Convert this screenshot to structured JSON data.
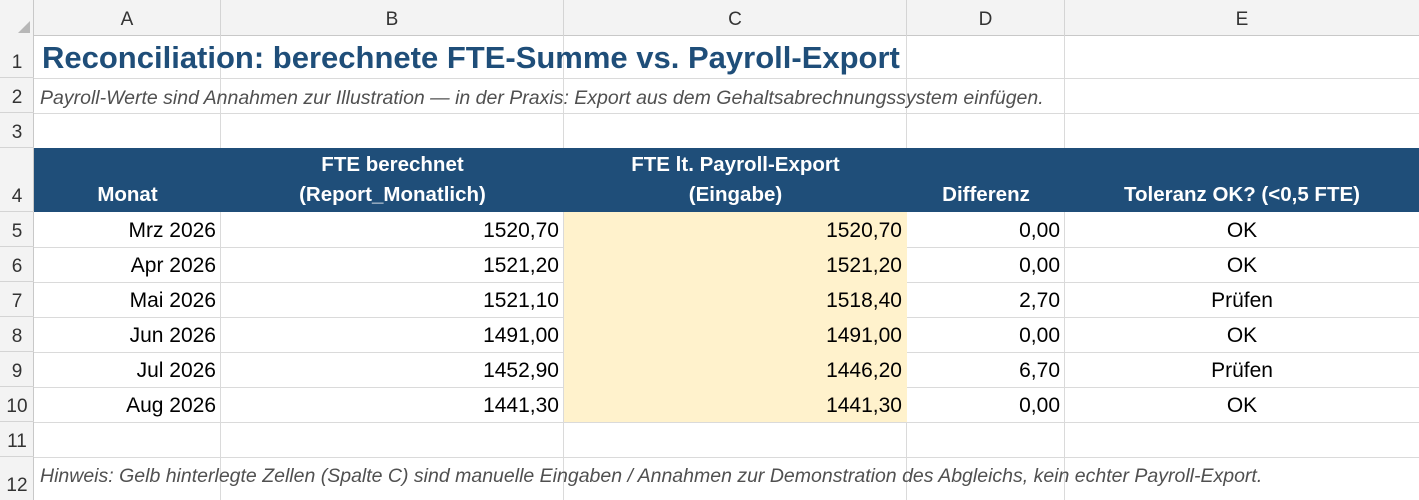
{
  "columns": [
    "A",
    "B",
    "C",
    "D",
    "E"
  ],
  "row_numbers": [
    "1",
    "2",
    "3",
    "4",
    "5",
    "6",
    "7",
    "8",
    "9",
    "10",
    "11",
    "12"
  ],
  "title": "Reconciliation: berechnete FTE-Summe vs. Payroll-Export",
  "subtitle": "Payroll-Werte sind Annahmen zur Illustration — in der Praxis: Export aus dem Gehaltsabrechnungssystem einfügen.",
  "table": {
    "headers": [
      {
        "line1": "",
        "line2": "Monat"
      },
      {
        "line1": "FTE berechnet",
        "line2": "(Report_Monatlich)"
      },
      {
        "line1": "FTE lt. Payroll-Export",
        "line2": "(Eingabe)"
      },
      {
        "line1": "",
        "line2": "Differenz"
      },
      {
        "line1": "",
        "line2": "Toleranz OK? (<0,5 FTE)"
      }
    ],
    "rows": [
      [
        "Mrz 2026",
        "1520,70",
        "1520,70",
        "0,00",
        "OK"
      ],
      [
        "Apr 2026",
        "1521,20",
        "1521,20",
        "0,00",
        "OK"
      ],
      [
        "Mai 2026",
        "1521,10",
        "1518,40",
        "2,70",
        "Prüfen"
      ],
      [
        "Jun 2026",
        "1491,00",
        "1491,00",
        "0,00",
        "OK"
      ],
      [
        "Jul 2026",
        "1452,90",
        "1446,20",
        "6,70",
        "Prüfen"
      ],
      [
        "Aug 2026",
        "1441,30",
        "1441,30",
        "0,00",
        "OK"
      ]
    ]
  },
  "note": "Hinweis: Gelb hinterlegte Zellen (Spalte C) sind manuelle Eingaben / Annahmen zur Demonstration des Abgleichs, kein echter Payroll-Export.",
  "colors": {
    "header_fill": "#1f4e79",
    "title_text": "#1f4e79",
    "input_fill": "#fff2cc"
  }
}
